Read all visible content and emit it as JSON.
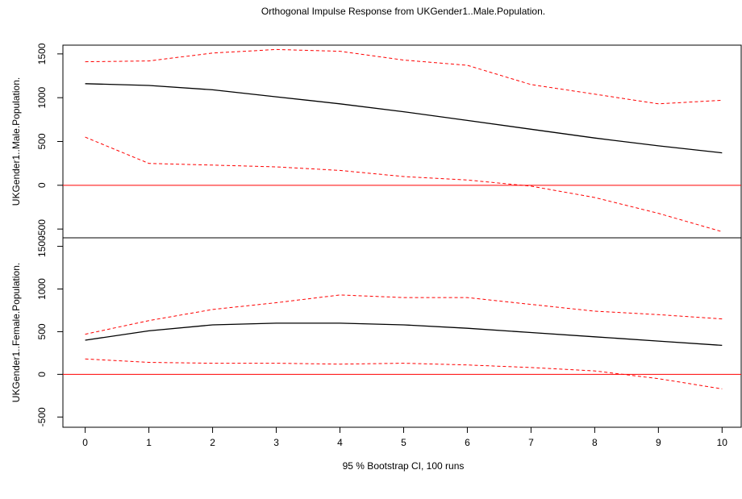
{
  "chart_data": {
    "type": "line",
    "title": "Orthogonal Impulse Response from UKGender1..Male.Population.",
    "xlabel": "95 % Bootstrap CI,  100 runs",
    "x": [
      0,
      1,
      2,
      3,
      4,
      5,
      6,
      7,
      8,
      9,
      10
    ],
    "x_ticks": [
      "0",
      "1",
      "2",
      "3",
      "4",
      "5",
      "6",
      "7",
      "8",
      "9",
      "10"
    ],
    "xlim": [
      -0.35,
      10.3
    ],
    "colors": {
      "irf": "#000000",
      "ci": "#ff0000",
      "zero": "#ff0000"
    },
    "panels": [
      {
        "ylabel": "UKGender1..Male.Population.",
        "ylim": [
          -600,
          1600
        ],
        "y_ticks": [
          "-500",
          "0",
          "500",
          "1000",
          "1500"
        ],
        "y_tick_values": [
          -500,
          0,
          500,
          1000,
          1500
        ],
        "series": [
          {
            "role": "irf",
            "values": [
              1160,
              1140,
              1090,
              1010,
              930,
              840,
              740,
              640,
              540,
              450,
              370
            ]
          },
          {
            "role": "ci-upper",
            "values": [
              1410,
              1420,
              1510,
              1550,
              1530,
              1430,
              1370,
              1150,
              1040,
              930,
              970
            ]
          },
          {
            "role": "ci-lower",
            "values": [
              550,
              250,
              230,
              210,
              170,
              100,
              60,
              -10,
              -140,
              -320,
              -530
            ]
          }
        ]
      },
      {
        "ylabel": "UKGender1..Female.Population.",
        "ylim": [
          -620,
          1600
        ],
        "y_ticks": [
          "-500",
          "0",
          "500",
          "1000",
          "1500"
        ],
        "y_tick_values": [
          -500,
          0,
          500,
          1000,
          1500
        ],
        "series": [
          {
            "role": "irf",
            "values": [
              400,
              510,
              580,
              600,
              600,
              580,
              540,
              490,
              440,
              390,
              340
            ]
          },
          {
            "role": "ci-upper",
            "values": [
              470,
              630,
              760,
              840,
              930,
              900,
              900,
              820,
              740,
              700,
              650
            ]
          },
          {
            "role": "ci-lower",
            "values": [
              180,
              140,
              130,
              130,
              120,
              130,
              110,
              80,
              40,
              -50,
              -170
            ]
          }
        ]
      }
    ],
    "grid": false,
    "legend": "none"
  }
}
